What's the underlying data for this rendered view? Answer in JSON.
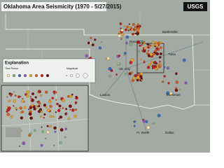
{
  "header": {
    "title": "Oklahoma Area Seismicity (1970 - 5/27/2015)",
    "logo": "USGS"
  },
  "legend": {
    "title": "Explanation",
    "time_period": "Time Period",
    "magnitude": "Magnitude"
  },
  "places": [
    {
      "label": "Ponca City"
    },
    {
      "label": "Bartlesville"
    },
    {
      "label": "Tulsa"
    },
    {
      "label": "Ok. City"
    },
    {
      "label": "Lawton"
    },
    {
      "label": "McAlester"
    },
    {
      "label": "Ft. Worth"
    },
    {
      "label": "Dallas"
    }
  ]
}
